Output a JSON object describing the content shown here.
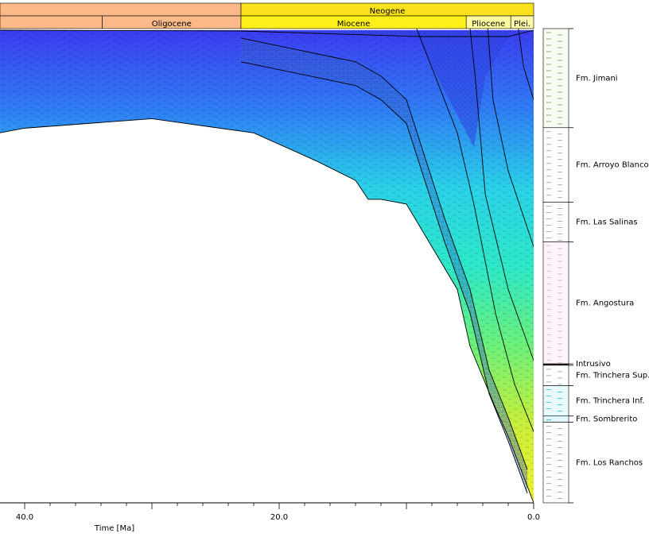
{
  "chart_data": {
    "type": "area",
    "title": "",
    "xlabel": "Time [Ma]",
    "ylabel": "",
    "xlim": [
      0,
      42
    ],
    "x_reversed": true,
    "x_ticks": [
      "40.0",
      "20.0",
      "0.0"
    ],
    "grid": false,
    "periods": [
      {
        "name": "Neogene",
        "from": 23.0,
        "to": 0.0,
        "color": "#f9e21c"
      }
    ],
    "epochs": [
      {
        "name": "Oligocene",
        "from": 33.9,
        "to": 23.0,
        "color": "#fbb98a"
      },
      {
        "name": "Miocene",
        "from": 23.0,
        "to": 5.3,
        "color": "#fdf01a"
      },
      {
        "name": "Pliocene",
        "from": 5.3,
        "to": 1.8,
        "color": "#fffa9e"
      },
      {
        "name": "Plei.",
        "from": 1.8,
        "to": 0.0,
        "color": "#fff6a8"
      }
    ],
    "column_fills": [
      {
        "series": "Fm. Jimani",
        "colors": [
          "#f7fbf2"
        ],
        "dot_color": "#5aa64f"
      },
      {
        "series": "Fm. Arroyo Blanco",
        "colors": [
          "#ffffff"
        ],
        "dot_color": "#9a9a9a"
      },
      {
        "series": "Fm. Las Salinas",
        "colors": [
          "#ffffff"
        ],
        "dot_color": "#9a9a9a"
      },
      {
        "series": "Fm. Angostura",
        "colors": [
          "#fff3fb"
        ],
        "dot_color": "#e0b0d0"
      },
      {
        "series": "Intrusivo",
        "colors": [
          "#222222"
        ],
        "dot_color": "#222222"
      },
      {
        "series": "Fm. Trinchera Sup.",
        "colors": [
          "#ffffff"
        ],
        "dot_color": "#9a9a9a"
      },
      {
        "series": "Fm. Trinchera Inf.",
        "colors": [
          "#e8fbff"
        ],
        "dot_color": "#32b8d8"
      },
      {
        "series": "Fm. Sombrerito",
        "colors": [
          "#e0f6ff"
        ],
        "dot_color": "#2f8fb8"
      },
      {
        "series": "Fm. Los Ranchos",
        "colors": [
          "#ffffff"
        ],
        "dot_color": "#9a9a9a"
      }
    ],
    "series": [
      {
        "name": "Fm. Jimani",
        "column_share": 0.209
      },
      {
        "name": "Fm. Arroyo Blanco",
        "column_share": 0.157
      },
      {
        "name": "Fm. Las Salinas",
        "column_share": 0.084
      },
      {
        "name": "Fm. Angostura",
        "column_share": 0.257
      },
      {
        "name": "Intrusivo",
        "column_share": 0.003
      },
      {
        "name": "Fm. Trinchera Sup.",
        "column_share": 0.043
      },
      {
        "name": "Fm. Trinchera Inf.",
        "column_share": 0.064
      },
      {
        "name": "Fm. Sombrerito",
        "column_share": 0.013
      },
      {
        "name": "Fm. Los Ranchos",
        "column_share": 0.17
      }
    ],
    "basement_curve": {
      "x": [
        42,
        40,
        30,
        22,
        17,
        14,
        13,
        12,
        10,
        6,
        5,
        3,
        2,
        0
      ],
      "depth": [
        0.22,
        0.21,
        0.19,
        0.22,
        0.28,
        0.32,
        0.36,
        0.36,
        0.37,
        0.55,
        0.67,
        0.8,
        0.86,
        1.0
      ]
    },
    "surface_depth": 0.0,
    "color_ramp": [
      "#3b3cf0",
      "#2f7df4",
      "#2ad1e8",
      "#2de8c8",
      "#6cf07a",
      "#c8ef3a",
      "#f2f22a"
    ]
  }
}
